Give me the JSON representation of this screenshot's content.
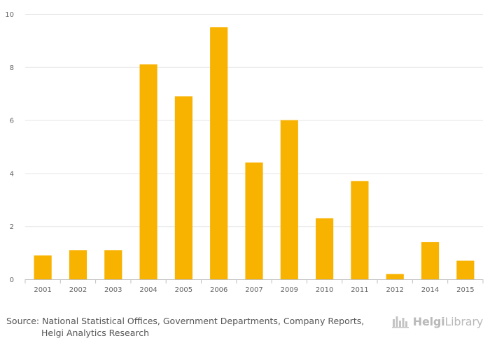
{
  "chart_data": {
    "type": "bar",
    "title": "",
    "xlabel": "",
    "ylabel": "",
    "categories": [
      "2001",
      "2002",
      "2003",
      "2004",
      "2005",
      "2006",
      "2007",
      "2009",
      "2010",
      "2011",
      "2012",
      "2014",
      "2015"
    ],
    "values": [
      0.9,
      1.1,
      1.1,
      8.1,
      6.9,
      9.5,
      4.4,
      6.0,
      2.3,
      3.7,
      0.2,
      1.4,
      0.7
    ],
    "ylim": [
      0,
      10
    ],
    "yticks": [
      0,
      2,
      4,
      6,
      8,
      10
    ],
    "grid": true,
    "legend": "none",
    "bar_color": "#f8b200"
  },
  "source": {
    "line1": "Source: National Statistical Offices, Government Departments, Company Reports,",
    "line2": "Helgi Analytics Research"
  },
  "brand": {
    "name_strong": "Helgi",
    "name_rest": "Library",
    "icon": "helgi-library-logo-icon"
  },
  "colors": {
    "grid": "#e6e6e6",
    "axis": "#c0c0c0",
    "tick_text": "#666666",
    "brand": "#b9b9b9"
  }
}
